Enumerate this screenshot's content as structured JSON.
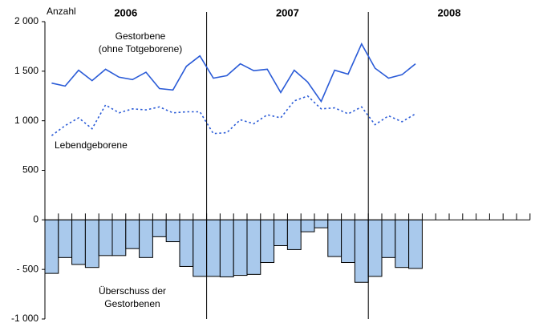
{
  "chart_data": {
    "type": "combo",
    "y_label": "Anzahl",
    "year_labels": [
      "2006",
      "2007",
      "2008"
    ],
    "categories": [
      null,
      null,
      null,
      null,
      null,
      null,
      null,
      null,
      null,
      null,
      null,
      null,
      null,
      null,
      null,
      null,
      null,
      null,
      null,
      null,
      null,
      null,
      null,
      null,
      null,
      null,
      null,
      null,
      null,
      null,
      null,
      null,
      null,
      null,
      null,
      null
    ],
    "ylim": [
      -1000,
      2000
    ],
    "yticks": [
      {
        "value": 2000,
        "label": "2 000"
      },
      {
        "value": 1500,
        "label": "1 500"
      },
      {
        "value": 1000,
        "label": "1 000"
      },
      500,
      0,
      {
        "value": -500,
        "label": "- 500"
      },
      {
        "value": -1000,
        "label": "-1 000"
      }
    ],
    "series": [
      {
        "label_lines": [
          "Überschuss der",
          "Gestorbenen"
        ],
        "type": "bar",
        "color": "#a9c9ec",
        "stroke": "#000000",
        "values": [
          -540,
          -380,
          -450,
          -480,
          -360,
          -360,
          -290,
          -380,
          -170,
          -220,
          -470,
          -570,
          -570,
          -575,
          -560,
          -550,
          -430,
          -260,
          -300,
          -120,
          -80,
          -370,
          -430,
          -630,
          -570,
          -380,
          -480,
          -490,
          null,
          null,
          null,
          null,
          null,
          null,
          null,
          null
        ]
      },
      {
        "label_lines": [
          "Gestorbene",
          "(ohne Totgeborene)"
        ],
        "type": "line",
        "color": "#2a5bd7",
        "dashed": false,
        "values": [
          1380,
          1350,
          1510,
          1405,
          1520,
          1440,
          1415,
          1490,
          1325,
          1310,
          1550,
          1655,
          1430,
          1455,
          1575,
          1505,
          1520,
          1285,
          1510,
          1390,
          1195,
          1510,
          1470,
          1775,
          1530,
          1430,
          1465,
          1575,
          null,
          null,
          null,
          null,
          null,
          null,
          null,
          null
        ]
      },
      {
        "label_lines": [
          "Lebendgeborene"
        ],
        "type": "line",
        "color": "#2a5bd7",
        "dashed": true,
        "values": [
          850,
          950,
          1030,
          920,
          1160,
          1080,
          1120,
          1110,
          1140,
          1080,
          1090,
          1090,
          870,
          880,
          1010,
          970,
          1060,
          1030,
          1200,
          1250,
          1120,
          1130,
          1070,
          1140,
          960,
          1050,
          990,
          1070,
          null,
          null,
          null,
          null,
          null,
          null,
          null,
          null
        ]
      }
    ]
  }
}
